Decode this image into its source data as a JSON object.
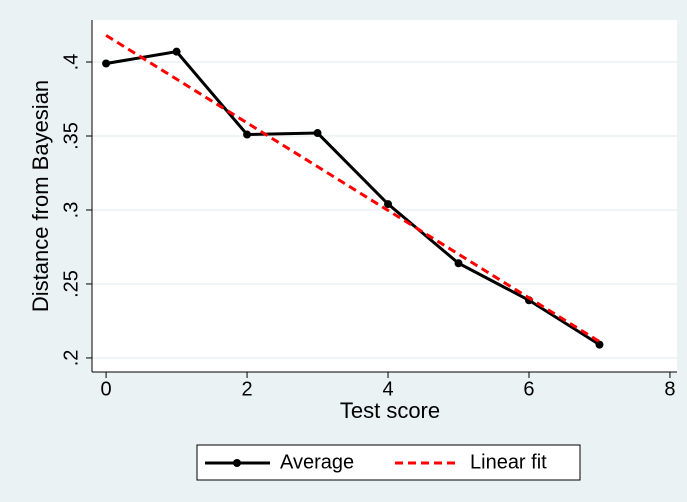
{
  "chart_data": {
    "type": "line",
    "xlabel": "Test score",
    "ylabel": "Distance from Bayesian",
    "series": [
      {
        "name": "Average",
        "color": "#000000",
        "x": [
          0,
          1,
          2,
          3,
          4,
          5,
          6,
          7
        ],
        "values": [
          0.399,
          0.407,
          0.351,
          0.352,
          0.304,
          0.264,
          0.239,
          0.209
        ],
        "dash": false,
        "markers": true
      },
      {
        "name": "Linear fit",
        "color": "#ff0000",
        "x": [
          0,
          7
        ],
        "values": [
          0.418,
          0.211
        ],
        "dash": true,
        "markers": false
      }
    ],
    "xlim": [
      -0.2,
      8.1
    ],
    "xticks": [
      0,
      2,
      4,
      6,
      8
    ],
    "ylim": [
      0.1905,
      0.4284
    ],
    "yticks": [
      {
        "value": 0.2,
        "label": ".2"
      },
      {
        "value": 0.25,
        "label": ".25"
      },
      {
        "value": 0.3,
        "label": ".3"
      },
      {
        "value": 0.35,
        "label": ".35"
      },
      {
        "value": 0.4,
        "label": ".4"
      }
    ],
    "grid": true,
    "legend": "bottom"
  }
}
